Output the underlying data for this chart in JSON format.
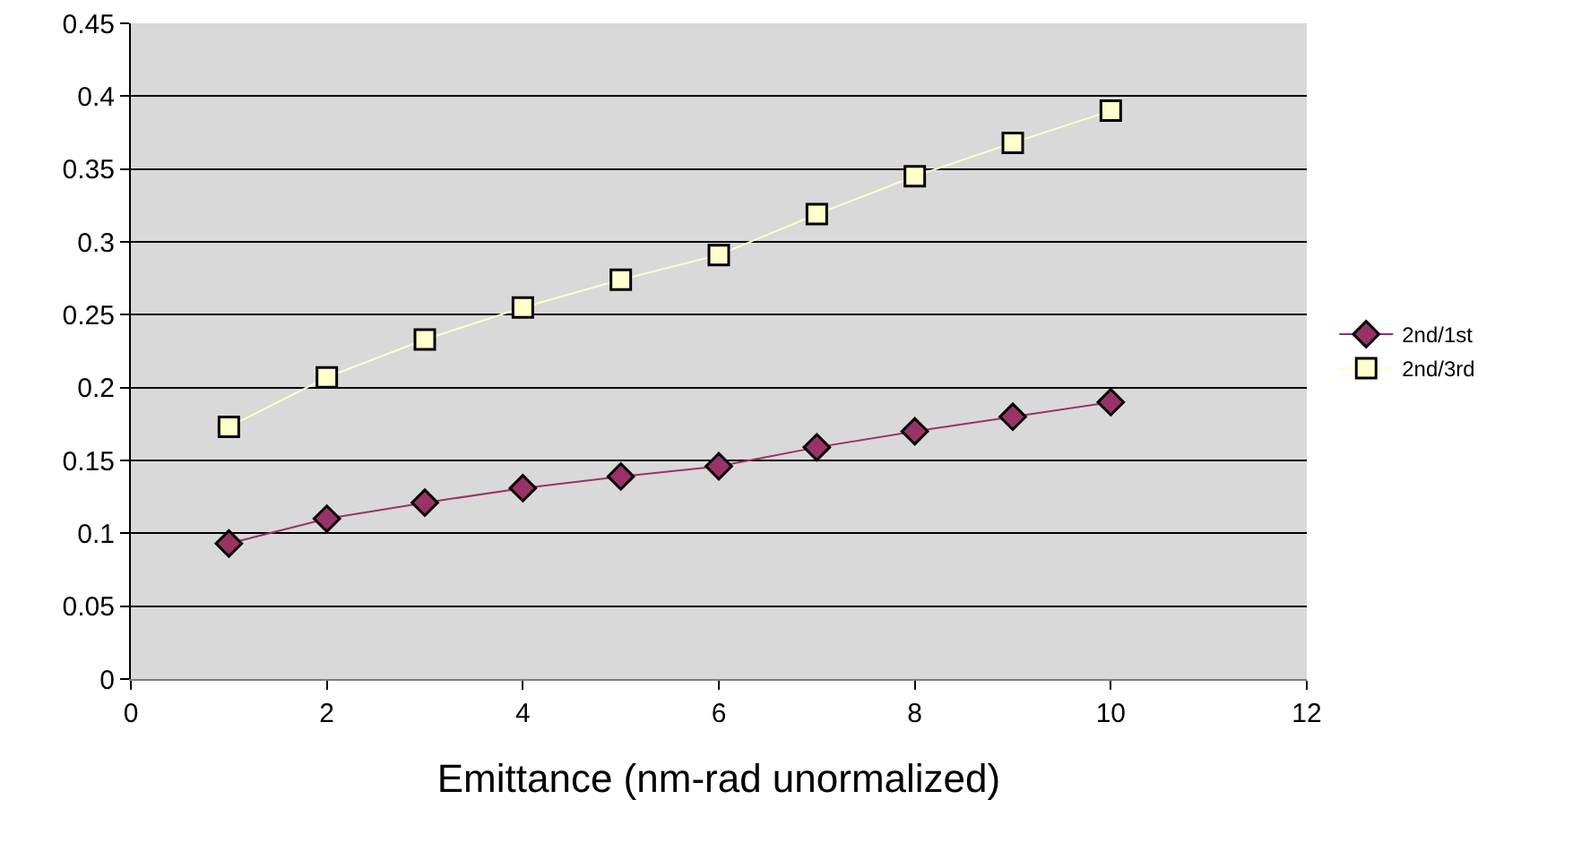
{
  "chart_data": {
    "type": "line",
    "xlabel": "Emittance (nm-rad unormalized)",
    "x": [
      1,
      2,
      3,
      4,
      5,
      6,
      7,
      8,
      9,
      10
    ],
    "series": [
      {
        "name": "2nd/1st",
        "color": "#993366",
        "marker": "diamond",
        "values": [
          0.093,
          0.11,
          0.121,
          0.131,
          0.139,
          0.146,
          0.159,
          0.17,
          0.18,
          0.19
        ]
      },
      {
        "name": "2nd/3rd",
        "color": "#ffffcc",
        "marker": "square",
        "values": [
          0.173,
          0.207,
          0.233,
          0.255,
          0.274,
          0.291,
          0.319,
          0.345,
          0.368,
          0.39
        ]
      }
    ],
    "xlim": [
      0,
      12
    ],
    "xticks": [
      0,
      2,
      4,
      6,
      8,
      10,
      12
    ],
    "ylim": [
      0,
      0.45
    ],
    "yticks": [
      0,
      0.05,
      0.1,
      0.15,
      0.2,
      0.25,
      0.3,
      0.35,
      0.4,
      0.45
    ],
    "grid": "y",
    "legend": "right",
    "line_style": "solid"
  }
}
